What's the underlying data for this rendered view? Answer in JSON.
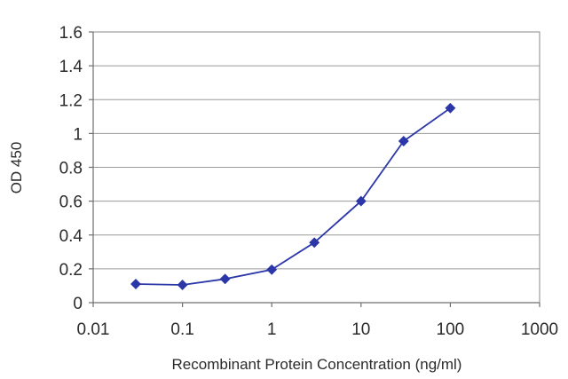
{
  "chart_data": {
    "type": "line",
    "xscale": "log",
    "xlim": [
      0.01,
      1000
    ],
    "ylim": [
      0,
      1.6
    ],
    "xticks": [
      "0.01",
      "0.1",
      "1",
      "10",
      "100",
      "1000"
    ],
    "yticks": [
      "0",
      "0.2",
      "0.4",
      "0.6",
      "0.8",
      "1",
      "1.2",
      "1.4",
      "1.6"
    ],
    "xlabel": "Recombinant Protein Concentration (ng/ml)",
    "ylabel": "OD 450",
    "grid": "horizontal",
    "series": [
      {
        "color": "#2b36a8",
        "x": [
          0.03,
          0.1,
          0.3,
          1,
          3,
          10,
          30,
          100
        ],
        "y": [
          0.11,
          0.105,
          0.14,
          0.195,
          0.355,
          0.6,
          0.955,
          1.15
        ]
      }
    ]
  }
}
